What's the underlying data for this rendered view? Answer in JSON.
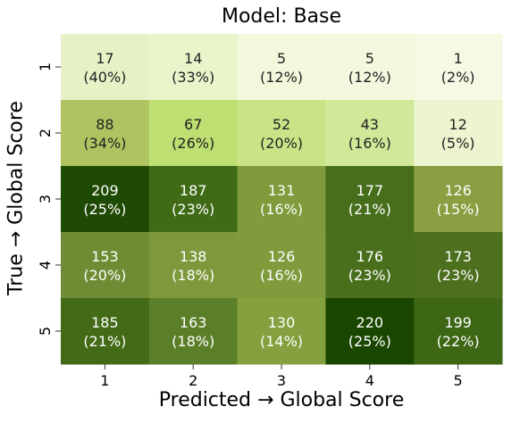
{
  "chart_data": {
    "type": "heatmap",
    "title": "Model: Base",
    "xlabel": "Predicted → Global Score",
    "ylabel": "True → Global Score",
    "x_categories": [
      "1",
      "2",
      "3",
      "4",
      "5"
    ],
    "y_categories": [
      "1",
      "2",
      "3",
      "4",
      "5"
    ],
    "values": [
      [
        17,
        14,
        5,
        5,
        1
      ],
      [
        88,
        67,
        52,
        43,
        12
      ],
      [
        209,
        187,
        131,
        177,
        126
      ],
      [
        153,
        138,
        126,
        176,
        173
      ],
      [
        185,
        163,
        130,
        220,
        199
      ]
    ],
    "percent_labels": [
      [
        "(40%)",
        "(33%)",
        "(12%)",
        "(12%)",
        "(2%)"
      ],
      [
        "(34%)",
        "(26%)",
        "(20%)",
        "(16%)",
        "(5%)"
      ],
      [
        "(25%)",
        "(23%)",
        "(16%)",
        "(21%)",
        "(15%)"
      ],
      [
        "(20%)",
        "(18%)",
        "(16%)",
        "(23%)",
        "(23%)"
      ],
      [
        "(21%)",
        "(18%)",
        "(14%)",
        "(25%)",
        "(22%)"
      ]
    ],
    "cell_colors": [
      [
        "#e6f2c6",
        "#e9f4cb",
        "#f2f8dc",
        "#f3f9de",
        "#f6fae5"
      ],
      [
        "#afc461",
        "#bedf72",
        "#c9e487",
        "#d1e899",
        "#ecf5cf"
      ],
      [
        "#1f4a04",
        "#3f6b17",
        "#7f9b3b",
        "#466e1b",
        "#899f42"
      ],
      [
        "#6e8c34",
        "#7e983c",
        "#7f9b3b",
        "#496f1c",
        "#4d701e"
      ],
      [
        "#436a17",
        "#5b7f28",
        "#84a03f",
        "#1a4700",
        "#3d6615"
      ]
    ],
    "text_colors": [
      [
        "#222222",
        "#222222",
        "#222222",
        "#222222",
        "#222222"
      ],
      [
        "#222222",
        "#222222",
        "#222222",
        "#222222",
        "#222222"
      ],
      [
        "#ffffff",
        "#ffffff",
        "#ffffff",
        "#ffffff",
        "#ffffff"
      ],
      [
        "#ffffff",
        "#ffffff",
        "#ffffff",
        "#ffffff",
        "#ffffff"
      ],
      [
        "#ffffff",
        "#ffffff",
        "#ffffff",
        "#ffffff",
        "#ffffff"
      ]
    ],
    "colormap": "light-to-dark green",
    "legend": "none",
    "grid": false
  }
}
